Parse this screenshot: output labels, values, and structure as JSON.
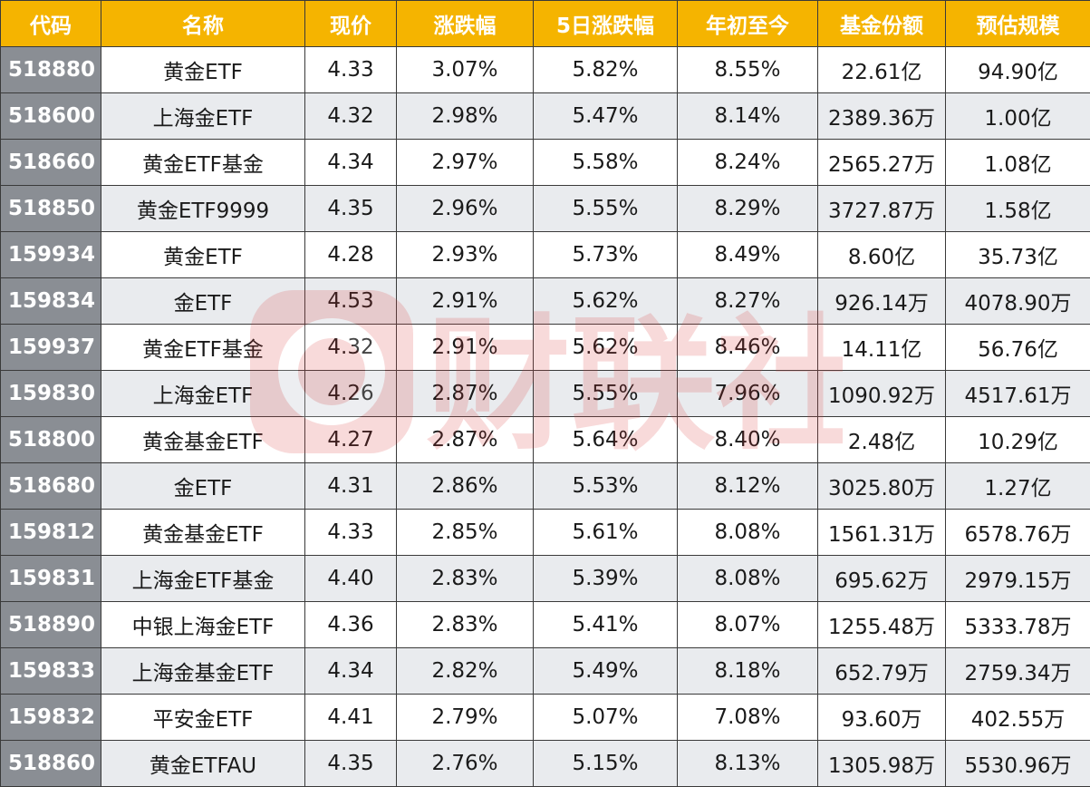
{
  "table": {
    "headers": [
      "代码",
      "名称",
      "现价",
      "涨跌幅",
      "5日涨跌幅",
      "年初至今",
      "基金份额",
      "预估规模"
    ],
    "rows": [
      [
        "518880",
        "黄金ETF",
        "4.33",
        "3.07%",
        "5.82%",
        "8.55%",
        "22.61亿",
        "94.90亿"
      ],
      [
        "518600",
        "上海金ETF",
        "4.32",
        "2.98%",
        "5.47%",
        "8.14%",
        "2389.36万",
        "1.00亿"
      ],
      [
        "518660",
        "黄金ETF基金",
        "4.34",
        "2.97%",
        "5.58%",
        "8.24%",
        "2565.27万",
        "1.08亿"
      ],
      [
        "518850",
        "黄金ETF9999",
        "4.35",
        "2.96%",
        "5.55%",
        "8.29%",
        "3727.87万",
        "1.58亿"
      ],
      [
        "159934",
        "黄金ETF",
        "4.28",
        "2.93%",
        "5.73%",
        "8.49%",
        "8.60亿",
        "35.73亿"
      ],
      [
        "159834",
        "金ETF",
        "4.53",
        "2.91%",
        "5.62%",
        "8.27%",
        "926.14万",
        "4078.90万"
      ],
      [
        "159937",
        "黄金ETF基金",
        "4.32",
        "2.91%",
        "5.62%",
        "8.46%",
        "14.11亿",
        "56.76亿"
      ],
      [
        "159830",
        "上海金ETF",
        "4.26",
        "2.87%",
        "5.55%",
        "7.96%",
        "1090.92万",
        "4517.61万"
      ],
      [
        "518800",
        "黄金基金ETF",
        "4.27",
        "2.87%",
        "5.64%",
        "8.40%",
        "2.48亿",
        "10.29亿"
      ],
      [
        "518680",
        "金ETF",
        "4.31",
        "2.86%",
        "5.53%",
        "8.12%",
        "3025.80万",
        "1.27亿"
      ],
      [
        "159812",
        "黄金基金ETF",
        "4.33",
        "2.85%",
        "5.61%",
        "8.08%",
        "1561.31万",
        "6578.76万"
      ],
      [
        "159831",
        "上海金ETF基金",
        "4.40",
        "2.83%",
        "5.39%",
        "8.08%",
        "695.62万",
        "2979.15万"
      ],
      [
        "518890",
        "中银上海金ETF",
        "4.36",
        "2.83%",
        "5.41%",
        "8.07%",
        "1255.48万",
        "5333.78万"
      ],
      [
        "159833",
        "上海金基金ETF",
        "4.34",
        "2.82%",
        "5.49%",
        "8.18%",
        "652.79万",
        "2759.34万"
      ],
      [
        "159832",
        "平安金ETF",
        "4.41",
        "2.79%",
        "5.07%",
        "7.08%",
        "93.60万",
        "402.55万"
      ],
      [
        "518860",
        "黄金ETFAU",
        "4.35",
        "2.76%",
        "5.15%",
        "8.13%",
        "1305.98万",
        "5530.96万"
      ]
    ]
  },
  "watermark": {
    "text": "财联社",
    "color": "#d93a3a"
  },
  "colors": {
    "header_bg": "#f5b400",
    "header_text": "#ffffff",
    "code_bg": "#8a8e94",
    "stripe_bg": "#e9ebee",
    "border": "#3a3a3a"
  }
}
